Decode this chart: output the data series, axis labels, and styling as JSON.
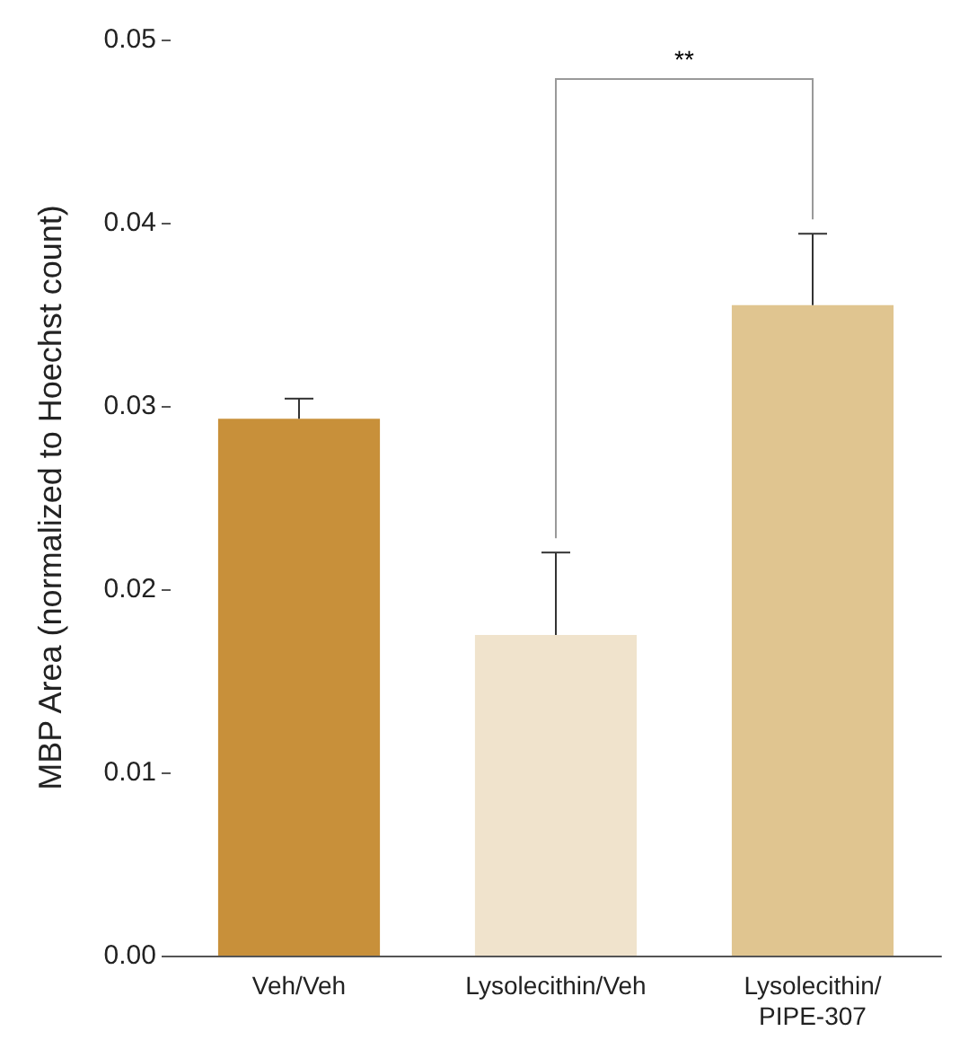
{
  "chart_data": {
    "type": "bar",
    "ylabel": "MBP Area (normalized to Hoechst count)",
    "categories": [
      "Veh/Veh",
      "Lysolecithin/Veh",
      "Lysolecithin/\nPIPE-307"
    ],
    "values": [
      0.0293,
      0.0175,
      0.0355
    ],
    "colors": [
      "#c8903a",
      "#f0e3cc",
      "#e0c590"
    ],
    "errors": [
      [
        0.0293,
        0.0304
      ],
      [
        0.0175,
        0.022
      ],
      [
        0.0355,
        0.0394
      ]
    ],
    "ylim": [
      0,
      0.05
    ],
    "yticks": [
      {
        "value": 0,
        "label": "0.00"
      },
      {
        "value": 0.01,
        "label": "0.01"
      },
      {
        "value": 0.02,
        "label": "0.02"
      },
      {
        "value": 0.03,
        "label": "0.03"
      },
      {
        "value": 0.04,
        "label": "0.04"
      },
      {
        "value": 0.05,
        "label": "0.05"
      }
    ],
    "grid": false,
    "annotations": [
      "**"
    ]
  }
}
